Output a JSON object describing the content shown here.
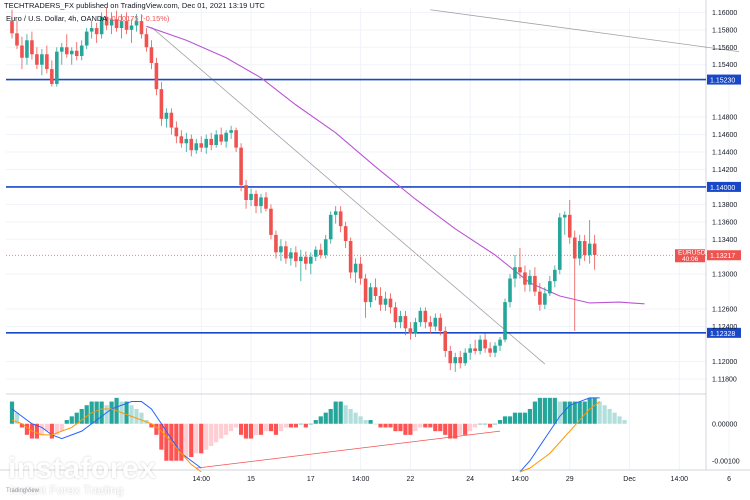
{
  "header": {
    "publisher": "TECHTRADERS_FX published on TradingView.com, Dec 01, 2021 13:19 UTC"
  },
  "legend": {
    "symbol": "Euro / U.S. Dollar, 4h, OANDA",
    "change": "-0.00175 (-0.15%)"
  },
  "watermark": {
    "brand": "instaforex",
    "tagline": "Instant Forex Trading"
  },
  "tv_logo": "TradingView",
  "colors": {
    "up": "#26a69a",
    "down": "#ef5350",
    "ma": "#ba55d3",
    "hline": "#1848c8",
    "trend": "#9a9a9a"
  },
  "chart_data": {
    "type": "candlestick",
    "symbol": "EURUSD",
    "timeframe": "4h",
    "y_axis": {
      "ylim": [
        1.1165,
        1.1605
      ],
      "ticks": [
        "1.16000",
        "1.15800",
        "1.15600",
        "1.15400",
        "1.14800",
        "1.14600",
        "1.14400",
        "1.14200",
        "1.13800",
        "1.13600",
        "1.13400",
        "1.13000",
        "1.12600",
        "1.12400",
        "1.12000",
        "1.11800"
      ]
    },
    "x_axis": {
      "ticks": [
        {
          "label": "14:00",
          "bar": 38
        },
        {
          "label": "15",
          "bar": 48
        },
        {
          "label": "17",
          "bar": 60
        },
        {
          "label": "14:00",
          "bar": 70
        },
        {
          "label": "22",
          "bar": 80
        },
        {
          "label": "24",
          "bar": 92
        },
        {
          "label": "14:00",
          "bar": 102
        },
        {
          "label": "29",
          "bar": 112
        },
        {
          "label": "Dec",
          "bar": 124
        },
        {
          "label": "14:00",
          "bar": 134
        },
        {
          "label": "6",
          "bar": 144
        }
      ]
    },
    "hlines": [
      {
        "price": 1.1523,
        "label": "1.15230"
      },
      {
        "price": 1.14,
        "label": "1.14000"
      },
      {
        "price": 1.12328,
        "label": "1.12328"
      }
    ],
    "current_price": {
      "price": 1.13217,
      "label": "EURUSD",
      "value": "1.13217",
      "timer": "40:06"
    },
    "trendlines": [
      {
        "from": {
          "bar": 28,
          "price": 1.1583
        },
        "to": {
          "bar": 107,
          "price": 1.1197
        }
      },
      {
        "from": {
          "bar": 84,
          "price": 1.1603
        },
        "to": {
          "bar": 146,
          "price": 1.1555
        }
      }
    ],
    "ma_series": [
      {
        "bar": 27,
        "price": 1.1584
      },
      {
        "bar": 35,
        "price": 1.1568
      },
      {
        "bar": 43,
        "price": 1.1548
      },
      {
        "bar": 50,
        "price": 1.1525
      },
      {
        "bar": 57,
        "price": 1.1494
      },
      {
        "bar": 65,
        "price": 1.1462
      },
      {
        "bar": 73,
        "price": 1.1423
      },
      {
        "bar": 81,
        "price": 1.1386
      },
      {
        "bar": 89,
        "price": 1.1352
      },
      {
        "bar": 97,
        "price": 1.1322
      },
      {
        "bar": 104,
        "price": 1.129
      },
      {
        "bar": 110,
        "price": 1.1275
      },
      {
        "bar": 116,
        "price": 1.1267
      },
      {
        "bar": 122,
        "price": 1.1268
      },
      {
        "bar": 127,
        "price": 1.1266
      }
    ],
    "candles": [
      {
        "o": 1.159,
        "h": 1.1603,
        "l": 1.157,
        "c": 1.1576
      },
      {
        "o": 1.1576,
        "h": 1.159,
        "l": 1.1558,
        "c": 1.1562
      },
      {
        "o": 1.1562,
        "h": 1.1572,
        "l": 1.1535,
        "c": 1.1548
      },
      {
        "o": 1.1548,
        "h": 1.1575,
        "l": 1.154,
        "c": 1.1568
      },
      {
        "o": 1.1568,
        "h": 1.1578,
        "l": 1.1546,
        "c": 1.1552
      },
      {
        "o": 1.1552,
        "h": 1.156,
        "l": 1.1535,
        "c": 1.154
      },
      {
        "o": 1.154,
        "h": 1.1558,
        "l": 1.1528,
        "c": 1.1552
      },
      {
        "o": 1.1552,
        "h": 1.1562,
        "l": 1.153,
        "c": 1.1535
      },
      {
        "o": 1.1535,
        "h": 1.1545,
        "l": 1.1515,
        "c": 1.1518
      },
      {
        "o": 1.1518,
        "h": 1.156,
        "l": 1.1515,
        "c": 1.1555
      },
      {
        "o": 1.1555,
        "h": 1.1565,
        "l": 1.154,
        "c": 1.156
      },
      {
        "o": 1.156,
        "h": 1.1575,
        "l": 1.1548,
        "c": 1.1552
      },
      {
        "o": 1.1552,
        "h": 1.156,
        "l": 1.154,
        "c": 1.1556
      },
      {
        "o": 1.1556,
        "h": 1.1566,
        "l": 1.1545,
        "c": 1.155
      },
      {
        "o": 1.155,
        "h": 1.1568,
        "l": 1.1545,
        "c": 1.1562
      },
      {
        "o": 1.1562,
        "h": 1.1582,
        "l": 1.1558,
        "c": 1.1578
      },
      {
        "o": 1.1578,
        "h": 1.159,
        "l": 1.157,
        "c": 1.1582
      },
      {
        "o": 1.1582,
        "h": 1.1588,
        "l": 1.1565,
        "c": 1.1575
      },
      {
        "o": 1.1575,
        "h": 1.16,
        "l": 1.157,
        "c": 1.1595
      },
      {
        "o": 1.1595,
        "h": 1.1605,
        "l": 1.158,
        "c": 1.1585
      },
      {
        "o": 1.1585,
        "h": 1.16,
        "l": 1.1575,
        "c": 1.1592
      },
      {
        "o": 1.1592,
        "h": 1.1602,
        "l": 1.1578,
        "c": 1.1582
      },
      {
        "o": 1.1582,
        "h": 1.1598,
        "l": 1.157,
        "c": 1.159
      },
      {
        "o": 1.159,
        "h": 1.16,
        "l": 1.1575,
        "c": 1.158
      },
      {
        "o": 1.158,
        "h": 1.1592,
        "l": 1.1565,
        "c": 1.1585
      },
      {
        "o": 1.1585,
        "h": 1.1598,
        "l": 1.1578,
        "c": 1.159
      },
      {
        "o": 1.159,
        "h": 1.1598,
        "l": 1.157,
        "c": 1.1575
      },
      {
        "o": 1.1575,
        "h": 1.1582,
        "l": 1.1555,
        "c": 1.156
      },
      {
        "o": 1.156,
        "h": 1.1568,
        "l": 1.1535,
        "c": 1.1542
      },
      {
        "o": 1.1542,
        "h": 1.1548,
        "l": 1.1505,
        "c": 1.1512
      },
      {
        "o": 1.1512,
        "h": 1.152,
        "l": 1.147,
        "c": 1.1478
      },
      {
        "o": 1.1478,
        "h": 1.149,
        "l": 1.1468,
        "c": 1.1485
      },
      {
        "o": 1.1485,
        "h": 1.149,
        "l": 1.146,
        "c": 1.1468
      },
      {
        "o": 1.1468,
        "h": 1.1475,
        "l": 1.145,
        "c": 1.1458
      },
      {
        "o": 1.1458,
        "h": 1.1465,
        "l": 1.1445,
        "c": 1.145
      },
      {
        "o": 1.145,
        "h": 1.1462,
        "l": 1.144,
        "c": 1.1455
      },
      {
        "o": 1.1455,
        "h": 1.146,
        "l": 1.1435,
        "c": 1.1442
      },
      {
        "o": 1.1442,
        "h": 1.1455,
        "l": 1.1438,
        "c": 1.145
      },
      {
        "o": 1.145,
        "h": 1.1458,
        "l": 1.144,
        "c": 1.1445
      },
      {
        "o": 1.1445,
        "h": 1.146,
        "l": 1.1438,
        "c": 1.1455
      },
      {
        "o": 1.1455,
        "h": 1.1462,
        "l": 1.1442,
        "c": 1.1448
      },
      {
        "o": 1.1448,
        "h": 1.1465,
        "l": 1.1445,
        "c": 1.146
      },
      {
        "o": 1.146,
        "h": 1.1468,
        "l": 1.1448,
        "c": 1.1452
      },
      {
        "o": 1.1452,
        "h": 1.1465,
        "l": 1.1445,
        "c": 1.1462
      },
      {
        "o": 1.1462,
        "h": 1.147,
        "l": 1.1455,
        "c": 1.1465
      },
      {
        "o": 1.1465,
        "h": 1.1468,
        "l": 1.144,
        "c": 1.1445
      },
      {
        "o": 1.1445,
        "h": 1.145,
        "l": 1.1395,
        "c": 1.1402
      },
      {
        "o": 1.1402,
        "h": 1.1408,
        "l": 1.1375,
        "c": 1.1385
      },
      {
        "o": 1.1385,
        "h": 1.1398,
        "l": 1.1378,
        "c": 1.1392
      },
      {
        "o": 1.1392,
        "h": 1.1396,
        "l": 1.137,
        "c": 1.1378
      },
      {
        "o": 1.1378,
        "h": 1.1392,
        "l": 1.137,
        "c": 1.1388
      },
      {
        "o": 1.1388,
        "h": 1.1394,
        "l": 1.1372,
        "c": 1.1375
      },
      {
        "o": 1.1375,
        "h": 1.138,
        "l": 1.134,
        "c": 1.1345
      },
      {
        "o": 1.1345,
        "h": 1.135,
        "l": 1.1318,
        "c": 1.1325
      },
      {
        "o": 1.1325,
        "h": 1.134,
        "l": 1.1315,
        "c": 1.1332
      },
      {
        "o": 1.1332,
        "h": 1.1338,
        "l": 1.1312,
        "c": 1.1318
      },
      {
        "o": 1.1318,
        "h": 1.133,
        "l": 1.131,
        "c": 1.1325
      },
      {
        "o": 1.1325,
        "h": 1.1332,
        "l": 1.1308,
        "c": 1.1315
      },
      {
        "o": 1.1315,
        "h": 1.1328,
        "l": 1.1292,
        "c": 1.132
      },
      {
        "o": 1.132,
        "h": 1.1326,
        "l": 1.1305,
        "c": 1.1312
      },
      {
        "o": 1.1312,
        "h": 1.1325,
        "l": 1.13,
        "c": 1.132
      },
      {
        "o": 1.132,
        "h": 1.1332,
        "l": 1.1315,
        "c": 1.1328
      },
      {
        "o": 1.1328,
        "h": 1.1335,
        "l": 1.1318,
        "c": 1.1322
      },
      {
        "o": 1.1322,
        "h": 1.1345,
        "l": 1.1318,
        "c": 1.134
      },
      {
        "o": 1.134,
        "h": 1.1372,
        "l": 1.1335,
        "c": 1.1368
      },
      {
        "o": 1.1368,
        "h": 1.1378,
        "l": 1.1358,
        "c": 1.1372
      },
      {
        "o": 1.1372,
        "h": 1.1378,
        "l": 1.1348,
        "c": 1.1355
      },
      {
        "o": 1.1355,
        "h": 1.136,
        "l": 1.133,
        "c": 1.1338
      },
      {
        "o": 1.1338,
        "h": 1.1342,
        "l": 1.1295,
        "c": 1.1302
      },
      {
        "o": 1.1302,
        "h": 1.1318,
        "l": 1.129,
        "c": 1.1312
      },
      {
        "o": 1.1312,
        "h": 1.132,
        "l": 1.1288,
        "c": 1.1295
      },
      {
        "o": 1.1295,
        "h": 1.13,
        "l": 1.125,
        "c": 1.1268
      },
      {
        "o": 1.1268,
        "h": 1.129,
        "l": 1.1262,
        "c": 1.1285
      },
      {
        "o": 1.1285,
        "h": 1.1295,
        "l": 1.127,
        "c": 1.1275
      },
      {
        "o": 1.1275,
        "h": 1.1285,
        "l": 1.1258,
        "c": 1.1265
      },
      {
        "o": 1.1265,
        "h": 1.128,
        "l": 1.1258,
        "c": 1.1272
      },
      {
        "o": 1.1272,
        "h": 1.1278,
        "l": 1.1255,
        "c": 1.1262
      },
      {
        "o": 1.1262,
        "h": 1.1268,
        "l": 1.1238,
        "c": 1.1245
      },
      {
        "o": 1.1245,
        "h": 1.1258,
        "l": 1.1238,
        "c": 1.1252
      },
      {
        "o": 1.1252,
        "h": 1.1258,
        "l": 1.123,
        "c": 1.1238
      },
      {
        "o": 1.1238,
        "h": 1.1245,
        "l": 1.1225,
        "c": 1.1232
      },
      {
        "o": 1.1232,
        "h": 1.125,
        "l": 1.1228,
        "c": 1.1245
      },
      {
        "o": 1.1245,
        "h": 1.1262,
        "l": 1.124,
        "c": 1.1258
      },
      {
        "o": 1.1258,
        "h": 1.1262,
        "l": 1.1238,
        "c": 1.1245
      },
      {
        "o": 1.1245,
        "h": 1.1252,
        "l": 1.1232,
        "c": 1.124
      },
      {
        "o": 1.124,
        "h": 1.1255,
        "l": 1.1235,
        "c": 1.125
      },
      {
        "o": 1.125,
        "h": 1.1255,
        "l": 1.123,
        "c": 1.1235
      },
      {
        "o": 1.1235,
        "h": 1.124,
        "l": 1.1205,
        "c": 1.1212
      },
      {
        "o": 1.1212,
        "h": 1.1218,
        "l": 1.119,
        "c": 1.1198
      },
      {
        "o": 1.1198,
        "h": 1.121,
        "l": 1.1188,
        "c": 1.1205
      },
      {
        "o": 1.1205,
        "h": 1.1212,
        "l": 1.1192,
        "c": 1.1198
      },
      {
        "o": 1.1198,
        "h": 1.1215,
        "l": 1.1195,
        "c": 1.121
      },
      {
        "o": 1.121,
        "h": 1.122,
        "l": 1.1202,
        "c": 1.1215
      },
      {
        "o": 1.1215,
        "h": 1.1225,
        "l": 1.1208,
        "c": 1.1212
      },
      {
        "o": 1.1212,
        "h": 1.123,
        "l": 1.1208,
        "c": 1.1225
      },
      {
        "o": 1.1225,
        "h": 1.1232,
        "l": 1.121,
        "c": 1.1215
      },
      {
        "o": 1.1215,
        "h": 1.1222,
        "l": 1.1205,
        "c": 1.121
      },
      {
        "o": 1.121,
        "h": 1.1222,
        "l": 1.1205,
        "c": 1.1218
      },
      {
        "o": 1.1218,
        "h": 1.1228,
        "l": 1.1212,
        "c": 1.1225
      },
      {
        "o": 1.1225,
        "h": 1.1272,
        "l": 1.1222,
        "c": 1.1268
      },
      {
        "o": 1.1268,
        "h": 1.13,
        "l": 1.1262,
        "c": 1.1295
      },
      {
        "o": 1.1295,
        "h": 1.1322,
        "l": 1.1285,
        "c": 1.1308
      },
      {
        "o": 1.1308,
        "h": 1.133,
        "l": 1.1295,
        "c": 1.1302
      },
      {
        "o": 1.1302,
        "h": 1.131,
        "l": 1.128,
        "c": 1.1288
      },
      {
        "o": 1.1288,
        "h": 1.1305,
        "l": 1.128,
        "c": 1.1298
      },
      {
        "o": 1.1298,
        "h": 1.1308,
        "l": 1.1275,
        "c": 1.128
      },
      {
        "o": 1.128,
        "h": 1.129,
        "l": 1.1258,
        "c": 1.1265
      },
      {
        "o": 1.1265,
        "h": 1.1285,
        "l": 1.126,
        "c": 1.1278
      },
      {
        "o": 1.1278,
        "h": 1.1298,
        "l": 1.1275,
        "c": 1.1292
      },
      {
        "o": 1.1292,
        "h": 1.131,
        "l": 1.1285,
        "c": 1.1305
      },
      {
        "o": 1.1305,
        "h": 1.137,
        "l": 1.13,
        "c": 1.1365
      },
      {
        "o": 1.1365,
        "h": 1.1372,
        "l": 1.1345,
        "c": 1.1368
      },
      {
        "o": 1.1368,
        "h": 1.1385,
        "l": 1.1335,
        "c": 1.1342
      },
      {
        "o": 1.1342,
        "h": 1.135,
        "l": 1.1235,
        "c": 1.1318
      },
      {
        "o": 1.1318,
        "h": 1.1345,
        "l": 1.131,
        "c": 1.1338
      },
      {
        "o": 1.1338,
        "h": 1.1345,
        "l": 1.1315,
        "c": 1.1322
      },
      {
        "o": 1.1322,
        "h": 1.1362,
        "l": 1.1312,
        "c": 1.1335
      },
      {
        "o": 1.1335,
        "h": 1.1345,
        "l": 1.1305,
        "c": 1.1322
      }
    ],
    "macd": {
      "y_ticks": [
        "0.00000",
        "-0.00100"
      ],
      "ylim": [
        -0.00125,
        0.00075
      ],
      "histogram": [
        0.0006,
        0.0003,
        -0.0001,
        -0.0003,
        -0.0004,
        -0.0004,
        -0.0003,
        -0.0002,
        -0.0004,
        -0.0003,
        -0.0002,
        0.0001,
        0.0002,
        0.0003,
        0.0004,
        0.0005,
        0.0006,
        0.0006,
        0.0006,
        0.0005,
        0.0006,
        0.0007,
        0.0006,
        0.0006,
        0.0005,
        0.0004,
        0.0003,
        0.0001,
        -0.0001,
        -0.0003,
        -0.0007,
        -0.001,
        -0.001,
        -0.001,
        -0.001,
        -0.0009,
        -0.0009,
        -0.0008,
        -0.0008,
        -0.0007,
        -0.0006,
        -0.0005,
        -0.0004,
        -0.0003,
        -0.0002,
        -0.0001,
        -0.0003,
        -0.0004,
        -0.0004,
        -0.0003,
        -0.0003,
        -0.0002,
        -0.0002,
        -0.0003,
        -0.0002,
        -0.0001,
        -0.0001,
        -0.0001,
        0.0,
        -0.0001,
        0.0,
        0.0001,
        0.0002,
        0.0003,
        0.0004,
        0.0006,
        0.0006,
        0.0005,
        0.0004,
        0.0003,
        0.0002,
        0.0001,
        0.0001,
        0.0,
        -0.0001,
        -0.0001,
        -0.0001,
        -0.0002,
        -0.0002,
        -0.0003,
        -0.0003,
        -0.0002,
        -0.0001,
        -0.0001,
        -0.0001,
        -0.0002,
        -0.0002,
        -0.0003,
        -0.0004,
        -0.0004,
        -0.0003,
        -0.0003,
        -0.0002,
        -0.0001,
        0.0,
        0.0,
        -0.0001,
        0.0,
        0.0001,
        0.0002,
        0.0002,
        0.0003,
        0.0003,
        0.0003,
        0.0004,
        0.0006,
        0.0007,
        0.0007,
        0.0007,
        0.0007,
        0.0006,
        0.0006,
        0.0006,
        0.0006,
        0.0006,
        0.0006,
        0.0007,
        0.0007,
        0.0006,
        0.0005,
        0.0004,
        0.0003,
        0.0002,
        0.0001
      ],
      "macd_line": [
        0.0004,
        0.0002,
        0.0,
        -0.0001,
        -0.0003,
        -0.0004,
        -0.0003,
        -0.0002,
        0.0,
        0.0002,
        0.0004,
        0.0005,
        0.0006,
        0.0006,
        0.0004,
        0.0,
        -0.0004,
        -0.0008,
        -0.001,
        -0.0012
      ],
      "signal_line": [
        0.0001,
        0.0,
        -0.0002,
        -0.0003,
        -0.0003,
        -0.0002,
        -0.0001,
        0.0001,
        0.0003,
        0.0004,
        0.0004,
        0.0003,
        0.0002,
        0.0001,
        0.0,
        -0.0002,
        -0.0005,
        -0.0008,
        -0.0011,
        -0.0013
      ],
      "macd_line_late": [
        -0.0013,
        -0.001,
        -0.0006,
        -0.0002,
        0.0002,
        0.0005,
        0.0006,
        0.0007,
        0.0007
      ],
      "signal_line_late": [
        -0.0013,
        -0.0012,
        -0.001,
        -0.0008,
        -0.0005,
        -0.0002,
        0.0001,
        0.0004,
        0.0006
      ],
      "trend": {
        "from": {
          "bar": 37,
          "value": -0.0012
        },
        "to": {
          "bar": 98,
          "value": -0.0002
        }
      }
    }
  }
}
